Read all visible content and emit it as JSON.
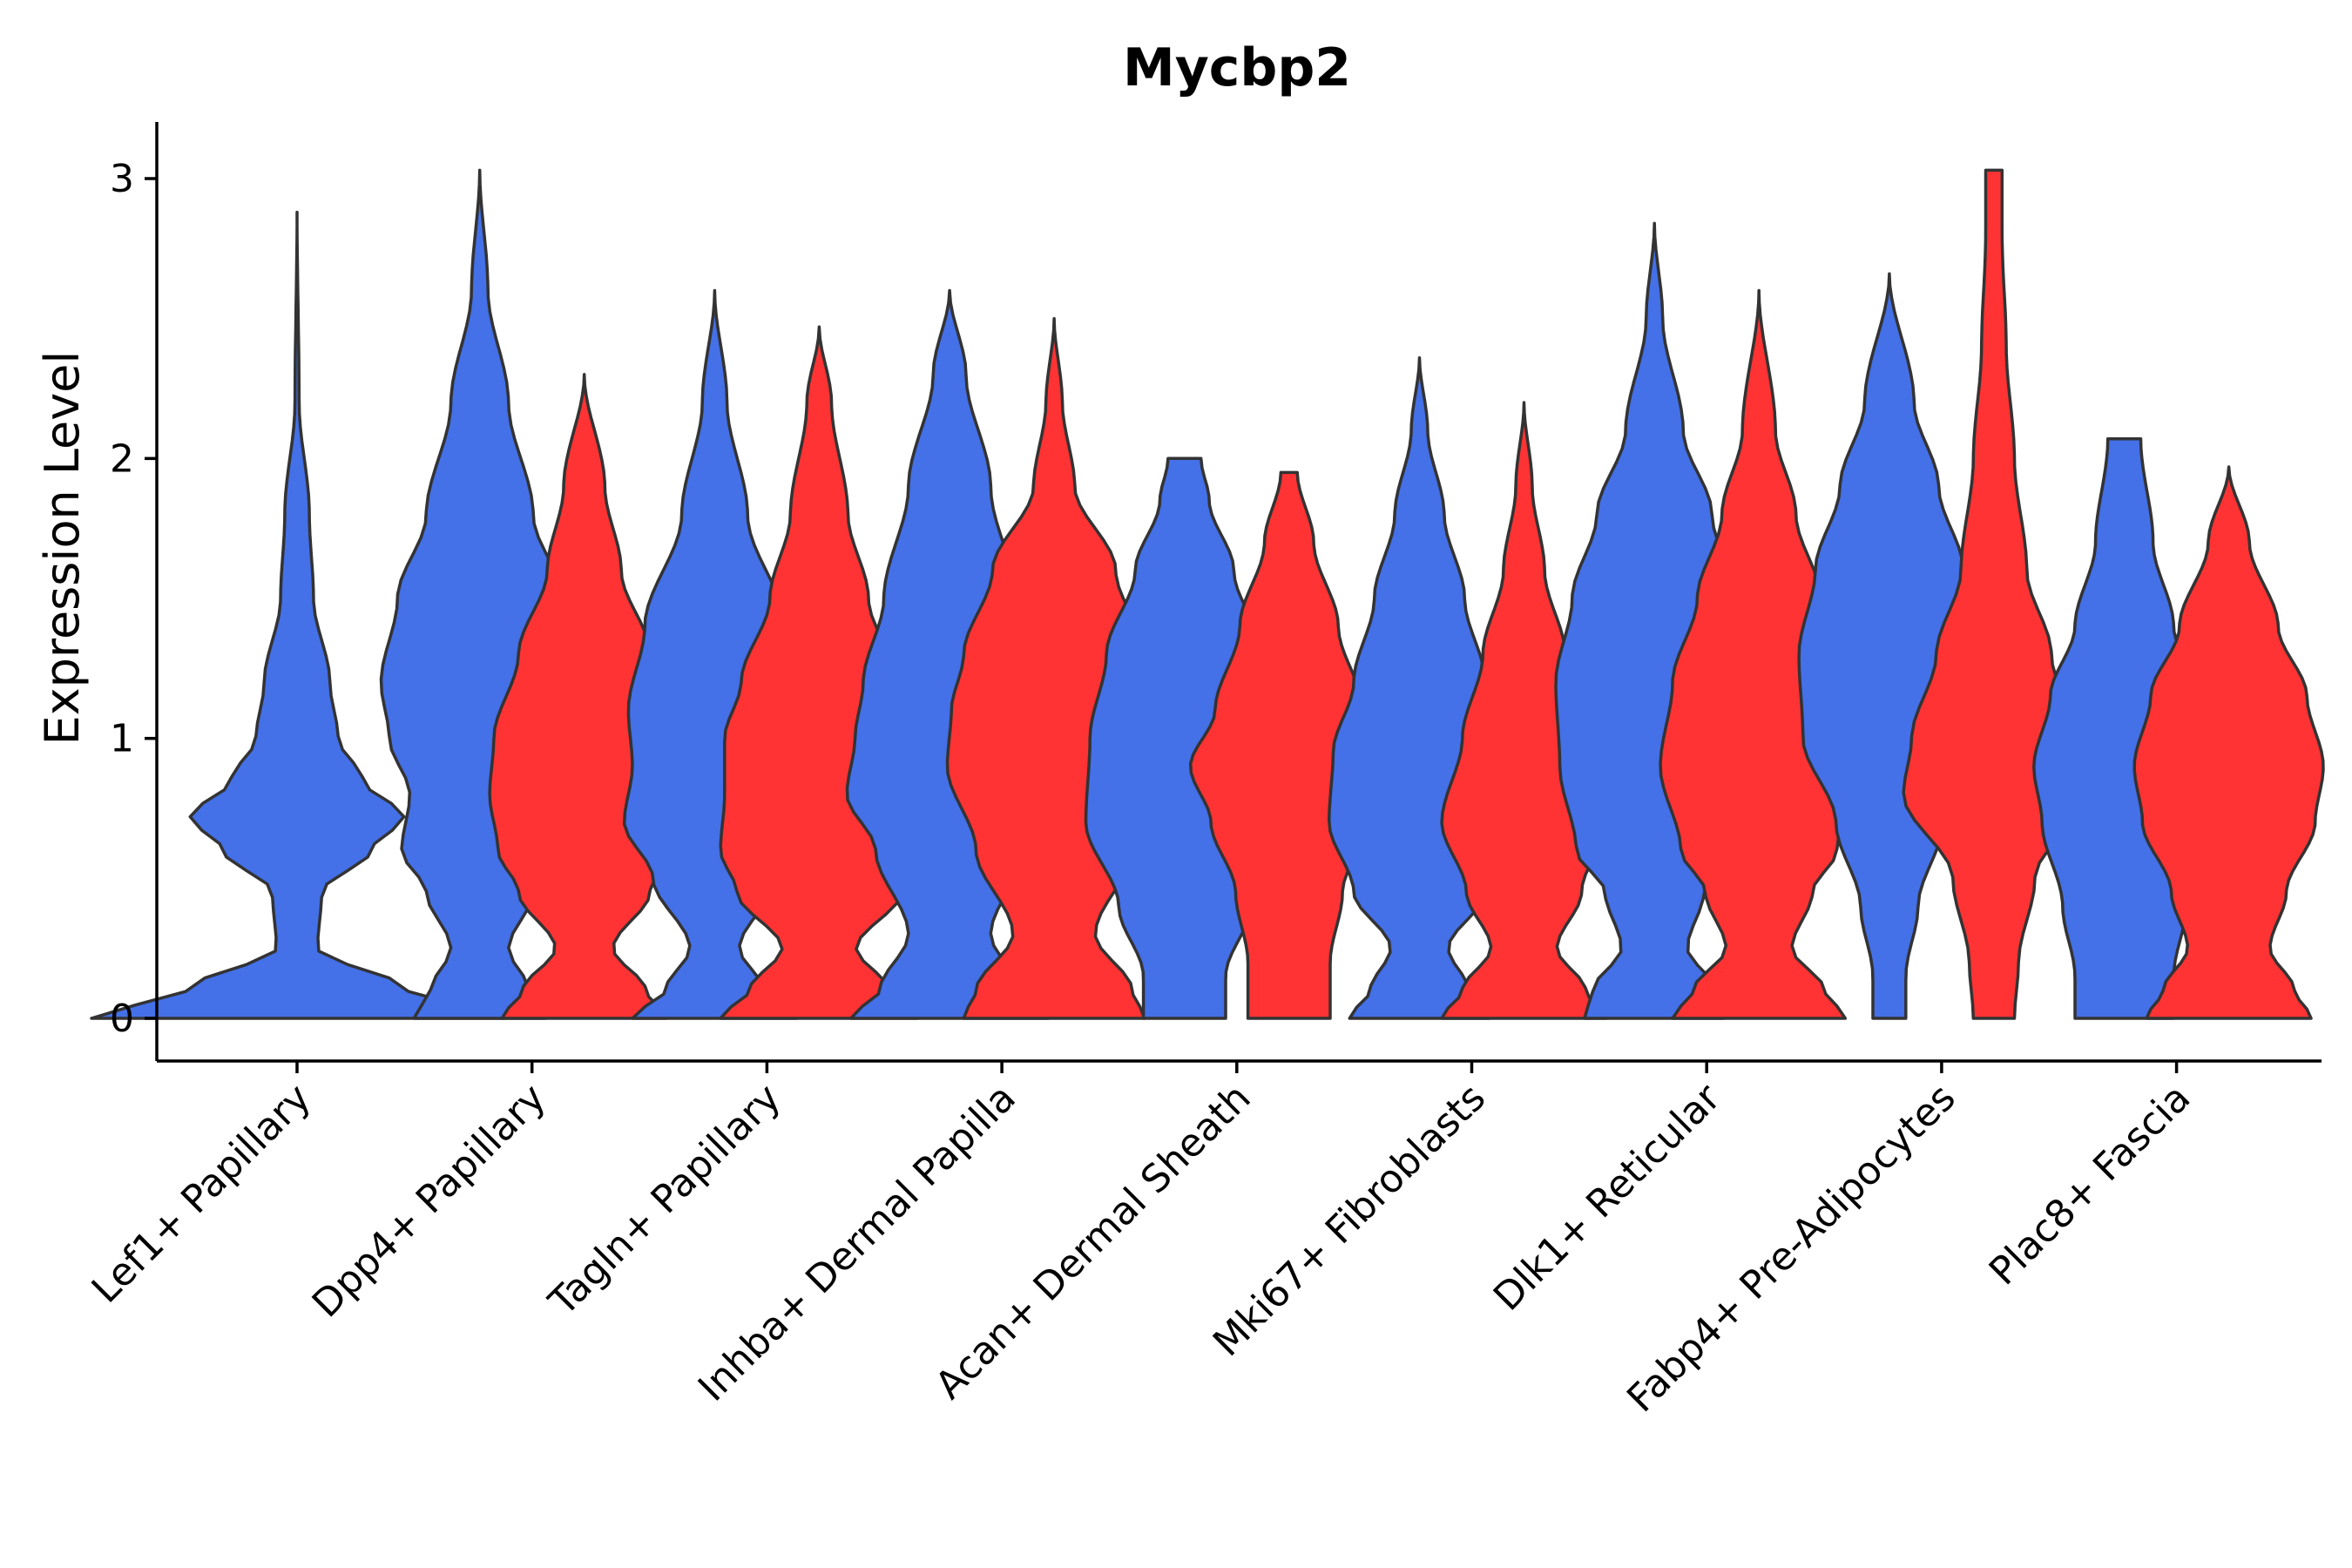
{
  "chart_data": {
    "type": "violin",
    "title": "Mycbp2",
    "xlabel": "",
    "ylabel": "Expression Level",
    "ylim": [
      -0.15,
      3.2
    ],
    "yticks": [
      0,
      1,
      2,
      3
    ],
    "grid": false,
    "legend": "none",
    "colors": {
      "blue": "#4470E8",
      "red": "#FF3333",
      "outline": "#333333"
    },
    "categories": [
      "Lef1+ Papillary",
      "Dpp4+ Papillary",
      "Tagln+ Papillary",
      "Inhba+ Dermal Papilla",
      "Acan+ Dermal Sheath",
      "Mki67+ Fibroblasts",
      "Dlk1+ Reticular",
      "Fabp4+ Pre-Adipocytes",
      "Plac8+ Fascia"
    ],
    "violins": [
      {
        "category": "Lef1+ Papillary",
        "group": "blue",
        "max": 2.88,
        "shape": [
          [
            0,
            0.5
          ],
          [
            0.1,
            0.27
          ],
          [
            0.25,
            0.05
          ],
          [
            0.45,
            0.06
          ],
          [
            0.6,
            0.18
          ],
          [
            0.72,
            0.26
          ],
          [
            0.85,
            0.16
          ],
          [
            1.0,
            0.1
          ],
          [
            1.2,
            0.08
          ],
          [
            1.5,
            0.04
          ],
          [
            1.8,
            0.03
          ],
          [
            2.2,
            0.005
          ],
          [
            2.88,
            0
          ]
        ]
      },
      {
        "category": "Dpp4+ Papillary",
        "group": "blue",
        "max": 3.03,
        "shape": [
          [
            0,
            0.16
          ],
          [
            0.1,
            0.12
          ],
          [
            0.25,
            0.07
          ],
          [
            0.45,
            0.13
          ],
          [
            0.6,
            0.19
          ],
          [
            0.8,
            0.17
          ],
          [
            1.0,
            0.22
          ],
          [
            1.2,
            0.24
          ],
          [
            1.5,
            0.2
          ],
          [
            1.8,
            0.13
          ],
          [
            2.2,
            0.07
          ],
          [
            2.6,
            0.02
          ],
          [
            3.03,
            0
          ]
        ]
      },
      {
        "category": "Dpp4+ Papillary",
        "group": "red",
        "max": 2.3,
        "shape": [
          [
            0,
            0.2
          ],
          [
            0.1,
            0.15
          ],
          [
            0.25,
            0.07
          ],
          [
            0.45,
            0.16
          ],
          [
            0.6,
            0.21
          ],
          [
            0.8,
            0.23
          ],
          [
            1.0,
            0.22
          ],
          [
            1.3,
            0.16
          ],
          [
            1.6,
            0.09
          ],
          [
            1.9,
            0.05
          ],
          [
            2.3,
            0
          ]
        ]
      },
      {
        "category": "Tagln+ Papillary",
        "group": "blue",
        "max": 2.6,
        "shape": [
          [
            0,
            0.2
          ],
          [
            0.1,
            0.12
          ],
          [
            0.25,
            0.06
          ],
          [
            0.5,
            0.15
          ],
          [
            0.7,
            0.22
          ],
          [
            0.9,
            0.2
          ],
          [
            1.1,
            0.21
          ],
          [
            1.4,
            0.17
          ],
          [
            1.8,
            0.08
          ],
          [
            2.2,
            0.03
          ],
          [
            2.6,
            0
          ]
        ]
      },
      {
        "category": "Tagln+ Papillary",
        "group": "red",
        "max": 2.47,
        "shape": [
          [
            0,
            0.24
          ],
          [
            0.1,
            0.17
          ],
          [
            0.25,
            0.09
          ],
          [
            0.45,
            0.2
          ],
          [
            0.6,
            0.24
          ],
          [
            0.8,
            0.23
          ],
          [
            1.0,
            0.23
          ],
          [
            1.2,
            0.19
          ],
          [
            1.5,
            0.12
          ],
          [
            1.8,
            0.07
          ],
          [
            2.2,
            0.03
          ],
          [
            2.47,
            0
          ]
        ]
      },
      {
        "category": "Inhba+ Dermal Papilla",
        "group": "blue",
        "max": 2.6,
        "shape": [
          [
            0,
            0.24
          ],
          [
            0.1,
            0.17
          ],
          [
            0.3,
            0.1
          ],
          [
            0.6,
            0.18
          ],
          [
            0.8,
            0.25
          ],
          [
            1.0,
            0.23
          ],
          [
            1.2,
            0.21
          ],
          [
            1.5,
            0.16
          ],
          [
            1.9,
            0.1
          ],
          [
            2.3,
            0.04
          ],
          [
            2.6,
            0
          ]
        ]
      },
      {
        "category": "Inhba+ Dermal Papilla",
        "group": "red",
        "max": 2.5,
        "shape": [
          [
            0,
            0.22
          ],
          [
            0.1,
            0.19
          ],
          [
            0.3,
            0.1
          ],
          [
            0.6,
            0.19
          ],
          [
            0.9,
            0.26
          ],
          [
            1.1,
            0.25
          ],
          [
            1.3,
            0.22
          ],
          [
            1.6,
            0.15
          ],
          [
            1.9,
            0.05
          ],
          [
            2.2,
            0.02
          ],
          [
            2.5,
            0
          ]
        ]
      },
      {
        "category": "Acan+ Dermal Sheath",
        "group": "blue",
        "max": 2.0,
        "shape": [
          [
            0,
            0.1
          ],
          [
            0.15,
            0.1
          ],
          [
            0.4,
            0.16
          ],
          [
            0.7,
            0.24
          ],
          [
            1.0,
            0.23
          ],
          [
            1.3,
            0.19
          ],
          [
            1.6,
            0.12
          ],
          [
            1.85,
            0.06
          ],
          [
            2.0,
            0.04
          ]
        ]
      },
      {
        "category": "Acan+ Dermal Sheath",
        "group": "red",
        "max": 1.95,
        "shape": [
          [
            0,
            0.1
          ],
          [
            0.2,
            0.1
          ],
          [
            0.45,
            0.13
          ],
          [
            0.7,
            0.19
          ],
          [
            0.9,
            0.24
          ],
          [
            1.1,
            0.18
          ],
          [
            1.4,
            0.12
          ],
          [
            1.7,
            0.06
          ],
          [
            1.95,
            0.02
          ]
        ]
      },
      {
        "category": "Mki67+ Fibroblasts",
        "group": "blue",
        "max": 2.36,
        "shape": [
          [
            0,
            0.17
          ],
          [
            0.1,
            0.12
          ],
          [
            0.25,
            0.07
          ],
          [
            0.45,
            0.16
          ],
          [
            0.7,
            0.22
          ],
          [
            0.95,
            0.21
          ],
          [
            1.2,
            0.16
          ],
          [
            1.5,
            0.11
          ],
          [
            1.8,
            0.06
          ],
          [
            2.1,
            0.02
          ],
          [
            2.36,
            0
          ]
        ]
      },
      {
        "category": "Mki67+ Fibroblasts",
        "group": "red",
        "max": 2.2,
        "shape": [
          [
            0,
            0.2
          ],
          [
            0.1,
            0.15
          ],
          [
            0.25,
            0.08
          ],
          [
            0.45,
            0.14
          ],
          [
            0.7,
            0.2
          ],
          [
            1.0,
            0.15
          ],
          [
            1.3,
            0.1
          ],
          [
            1.6,
            0.05
          ],
          [
            1.9,
            0.02
          ],
          [
            2.2,
            0
          ]
        ]
      },
      {
        "category": "Dlk1+ Reticular",
        "group": "blue",
        "max": 2.84,
        "shape": [
          [
            0,
            0.17
          ],
          [
            0.1,
            0.15
          ],
          [
            0.25,
            0.08
          ],
          [
            0.45,
            0.12
          ],
          [
            0.6,
            0.19
          ],
          [
            0.9,
            0.23
          ],
          [
            1.2,
            0.24
          ],
          [
            1.5,
            0.2
          ],
          [
            1.8,
            0.14
          ],
          [
            2.1,
            0.07
          ],
          [
            2.5,
            0.02
          ],
          [
            2.84,
            0
          ]
        ]
      },
      {
        "category": "Dlk1+ Reticular",
        "group": "red",
        "max": 2.6,
        "shape": [
          [
            0,
            0.21
          ],
          [
            0.1,
            0.16
          ],
          [
            0.25,
            0.08
          ],
          [
            0.45,
            0.13
          ],
          [
            0.6,
            0.19
          ],
          [
            0.9,
            0.24
          ],
          [
            1.2,
            0.21
          ],
          [
            1.5,
            0.15
          ],
          [
            1.8,
            0.09
          ],
          [
            2.1,
            0.04
          ],
          [
            2.6,
            0
          ]
        ]
      },
      {
        "category": "Fabp4+ Pre-Adipocytes",
        "group": "blue",
        "max": 2.66,
        "shape": [
          [
            0,
            0.04
          ],
          [
            0.15,
            0.04
          ],
          [
            0.4,
            0.07
          ],
          [
            0.7,
            0.13
          ],
          [
            1.0,
            0.21
          ],
          [
            1.3,
            0.22
          ],
          [
            1.6,
            0.18
          ],
          [
            1.9,
            0.12
          ],
          [
            2.2,
            0.06
          ],
          [
            2.66,
            0
          ]
        ]
      },
      {
        "category": "Fabp4+ Pre-Adipocytes",
        "group": "red",
        "max": 3.03,
        "shape": [
          [
            0,
            0.05
          ],
          [
            0.2,
            0.06
          ],
          [
            0.5,
            0.1
          ],
          [
            0.8,
            0.22
          ],
          [
            1.0,
            0.2
          ],
          [
            1.3,
            0.14
          ],
          [
            1.6,
            0.08
          ],
          [
            2.0,
            0.05
          ],
          [
            2.4,
            0.03
          ],
          [
            2.8,
            0.02
          ],
          [
            3.03,
            0.02
          ]
        ]
      },
      {
        "category": "Plac8+ Fascia",
        "group": "blue",
        "max": 2.07,
        "shape": [
          [
            0,
            0.12
          ],
          [
            0.15,
            0.12
          ],
          [
            0.4,
            0.15
          ],
          [
            0.7,
            0.2
          ],
          [
            0.9,
            0.22
          ],
          [
            1.15,
            0.18
          ],
          [
            1.4,
            0.12
          ],
          [
            1.7,
            0.07
          ],
          [
            2.07,
            0.04
          ]
        ]
      },
      {
        "category": "Plac8+ Fascia",
        "group": "red",
        "max": 1.97,
        "shape": [
          [
            0,
            0.2
          ],
          [
            0.1,
            0.16
          ],
          [
            0.25,
            0.1
          ],
          [
            0.45,
            0.14
          ],
          [
            0.7,
            0.21
          ],
          [
            0.9,
            0.23
          ],
          [
            1.15,
            0.19
          ],
          [
            1.4,
            0.12
          ],
          [
            1.7,
            0.05
          ],
          [
            1.97,
            0
          ]
        ]
      }
    ]
  }
}
